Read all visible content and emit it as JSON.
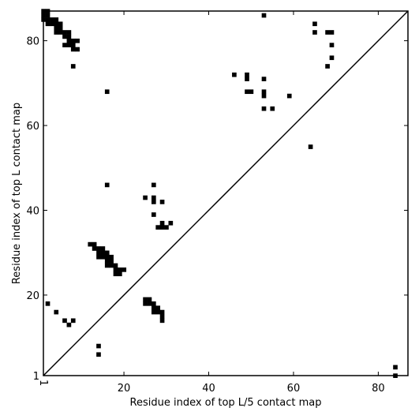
{
  "chart_data": {
    "type": "scatter",
    "title": "",
    "xlabel": "Residue index of top L/5 contact map",
    "ylabel": "Residue index of top L contact map",
    "xlim": [
      1,
      87
    ],
    "ylim": [
      1,
      87
    ],
    "x_ticks": [
      1,
      20,
      40,
      60,
      80
    ],
    "y_ticks": [
      1,
      20,
      40,
      60,
      80
    ],
    "diagonal": true,
    "legend": "none",
    "grid": false,
    "marker": "square",
    "marker_color": "#000000",
    "upper_triangle_points": [
      [
        1,
        87
      ],
      [
        2,
        87
      ],
      [
        1,
        86
      ],
      [
        2,
        86
      ],
      [
        1,
        85
      ],
      [
        2,
        85
      ],
      [
        3,
        85
      ],
      [
        4,
        85
      ],
      [
        2,
        84
      ],
      [
        3,
        84
      ],
      [
        4,
        84
      ],
      [
        5,
        84
      ],
      [
        4,
        83
      ],
      [
        5,
        83
      ],
      [
        4,
        82
      ],
      [
        5,
        82
      ],
      [
        6,
        82
      ],
      [
        7,
        82
      ],
      [
        6,
        81
      ],
      [
        7,
        81
      ],
      [
        7,
        80
      ],
      [
        8,
        80
      ],
      [
        9,
        80
      ],
      [
        6,
        79
      ],
      [
        7,
        79
      ],
      [
        8,
        79
      ],
      [
        8,
        78
      ],
      [
        9,
        78
      ],
      [
        8,
        74
      ],
      [
        16,
        68
      ],
      [
        12,
        32
      ],
      [
        13,
        32
      ],
      [
        13,
        31
      ],
      [
        14,
        31
      ],
      [
        15,
        31
      ],
      [
        14,
        30
      ],
      [
        15,
        30
      ],
      [
        16,
        30
      ],
      [
        14,
        29
      ],
      [
        15,
        29
      ],
      [
        16,
        29
      ],
      [
        17,
        29
      ],
      [
        16,
        28
      ],
      [
        17,
        28
      ],
      [
        16,
        27
      ],
      [
        17,
        27
      ],
      [
        18,
        27
      ],
      [
        18,
        26
      ],
      [
        19,
        26
      ],
      [
        20,
        26
      ],
      [
        18,
        25
      ],
      [
        19,
        25
      ],
      [
        16,
        46
      ],
      [
        27,
        46
      ],
      [
        25,
        43
      ],
      [
        27,
        43
      ],
      [
        27,
        42
      ],
      [
        29,
        42
      ],
      [
        27,
        39
      ],
      [
        29,
        37
      ],
      [
        31,
        37
      ],
      [
        28,
        36
      ],
      [
        29,
        36
      ],
      [
        30,
        36
      ],
      [
        46,
        72
      ],
      [
        49,
        72
      ],
      [
        49,
        71
      ],
      [
        53,
        71
      ],
      [
        49,
        68
      ],
      [
        50,
        68
      ],
      [
        53,
        68
      ],
      [
        53,
        67
      ],
      [
        59,
        67
      ],
      [
        53,
        64
      ],
      [
        55,
        64
      ],
      [
        53,
        86
      ],
      [
        65,
        84
      ],
      [
        65,
        82
      ],
      [
        68,
        82
      ],
      [
        69,
        82
      ],
      [
        69,
        79
      ],
      [
        69,
        76
      ],
      [
        68,
        74
      ],
      [
        64,
        55
      ]
    ],
    "lower_triangle_points": [
      [
        2,
        18
      ],
      [
        4,
        16
      ],
      [
        6,
        14
      ],
      [
        8,
        14
      ],
      [
        7,
        13
      ],
      [
        14,
        8
      ],
      [
        14,
        6
      ],
      [
        84,
        3
      ],
      [
        84,
        1
      ],
      [
        25,
        19
      ],
      [
        26,
        19
      ],
      [
        25,
        18
      ],
      [
        26,
        18
      ],
      [
        27,
        18
      ],
      [
        27,
        17
      ],
      [
        28,
        17
      ],
      [
        27,
        16
      ],
      [
        28,
        16
      ],
      [
        29,
        16
      ],
      [
        29,
        15
      ],
      [
        29,
        14
      ]
    ]
  }
}
